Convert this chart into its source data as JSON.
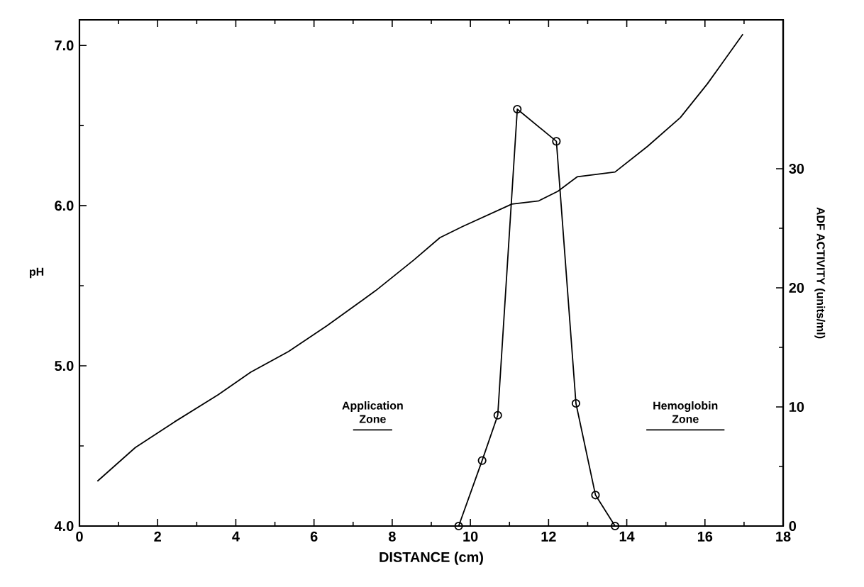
{
  "chart_data": {
    "type": "line",
    "xlabel": "DISTANCE  (cm)",
    "ylabel": "pH",
    "y2label": "ADF  ACTIVITY  (units/ml)",
    "xlim": [
      0,
      18
    ],
    "xticks": [
      0,
      2,
      4,
      6,
      8,
      10,
      12,
      14,
      16,
      18
    ],
    "ylim": [
      4,
      7.16
    ],
    "yticks": [
      {
        "value": 4,
        "label": "4.0"
      },
      {
        "value": 5,
        "label": "5.0"
      },
      {
        "value": 6,
        "label": "6.0"
      },
      {
        "value": 7,
        "label": "7.0"
      }
    ],
    "y2lim": [
      0,
      42.5
    ],
    "y2ticks": [
      0,
      10,
      20,
      30
    ],
    "annotations": [
      {
        "text": "Application Zone",
        "x": 7.5,
        "y": 4.6
      },
      {
        "text": "Hemoglobin Zone",
        "x": 15.5,
        "y": 4.6
      }
    ],
    "series": [
      {
        "color": "#000000",
        "marker": "none",
        "x": [
          0.46,
          1.43,
          2.43,
          3.55,
          4.38,
          5.35,
          6.33,
          7.58,
          8.55,
          9.22,
          9.8,
          11.06,
          11.75,
          12.24,
          12.73,
          13.7,
          14.53,
          15.37,
          16.06,
          16.97
        ],
        "values": [
          4.28,
          4.49,
          4.65,
          4.82,
          4.96,
          5.09,
          5.25,
          5.47,
          5.66,
          5.8,
          5.87,
          6.01,
          6.03,
          6.09,
          6.18,
          6.21,
          6.37,
          6.55,
          6.76,
          7.07
        ]
      },
      {
        "color": "#000000",
        "marker": "none",
        "x": [
          7.0,
          8.0
        ],
        "values": [
          4.6,
          4.6
        ]
      },
      {
        "color": "#000000",
        "marker": "none",
        "x": [
          14.5,
          16.5
        ],
        "values": [
          4.6,
          4.6
        ]
      },
      {
        "color": "#000000",
        "marker": "circle",
        "axis": "y2",
        "x": [
          9.7,
          10.3,
          10.7,
          11.2,
          12.2,
          12.7,
          13.2,
          13.7
        ],
        "values": [
          0,
          5.5,
          9.3,
          35,
          32.3,
          10.3,
          2.6,
          0
        ]
      }
    ]
  }
}
